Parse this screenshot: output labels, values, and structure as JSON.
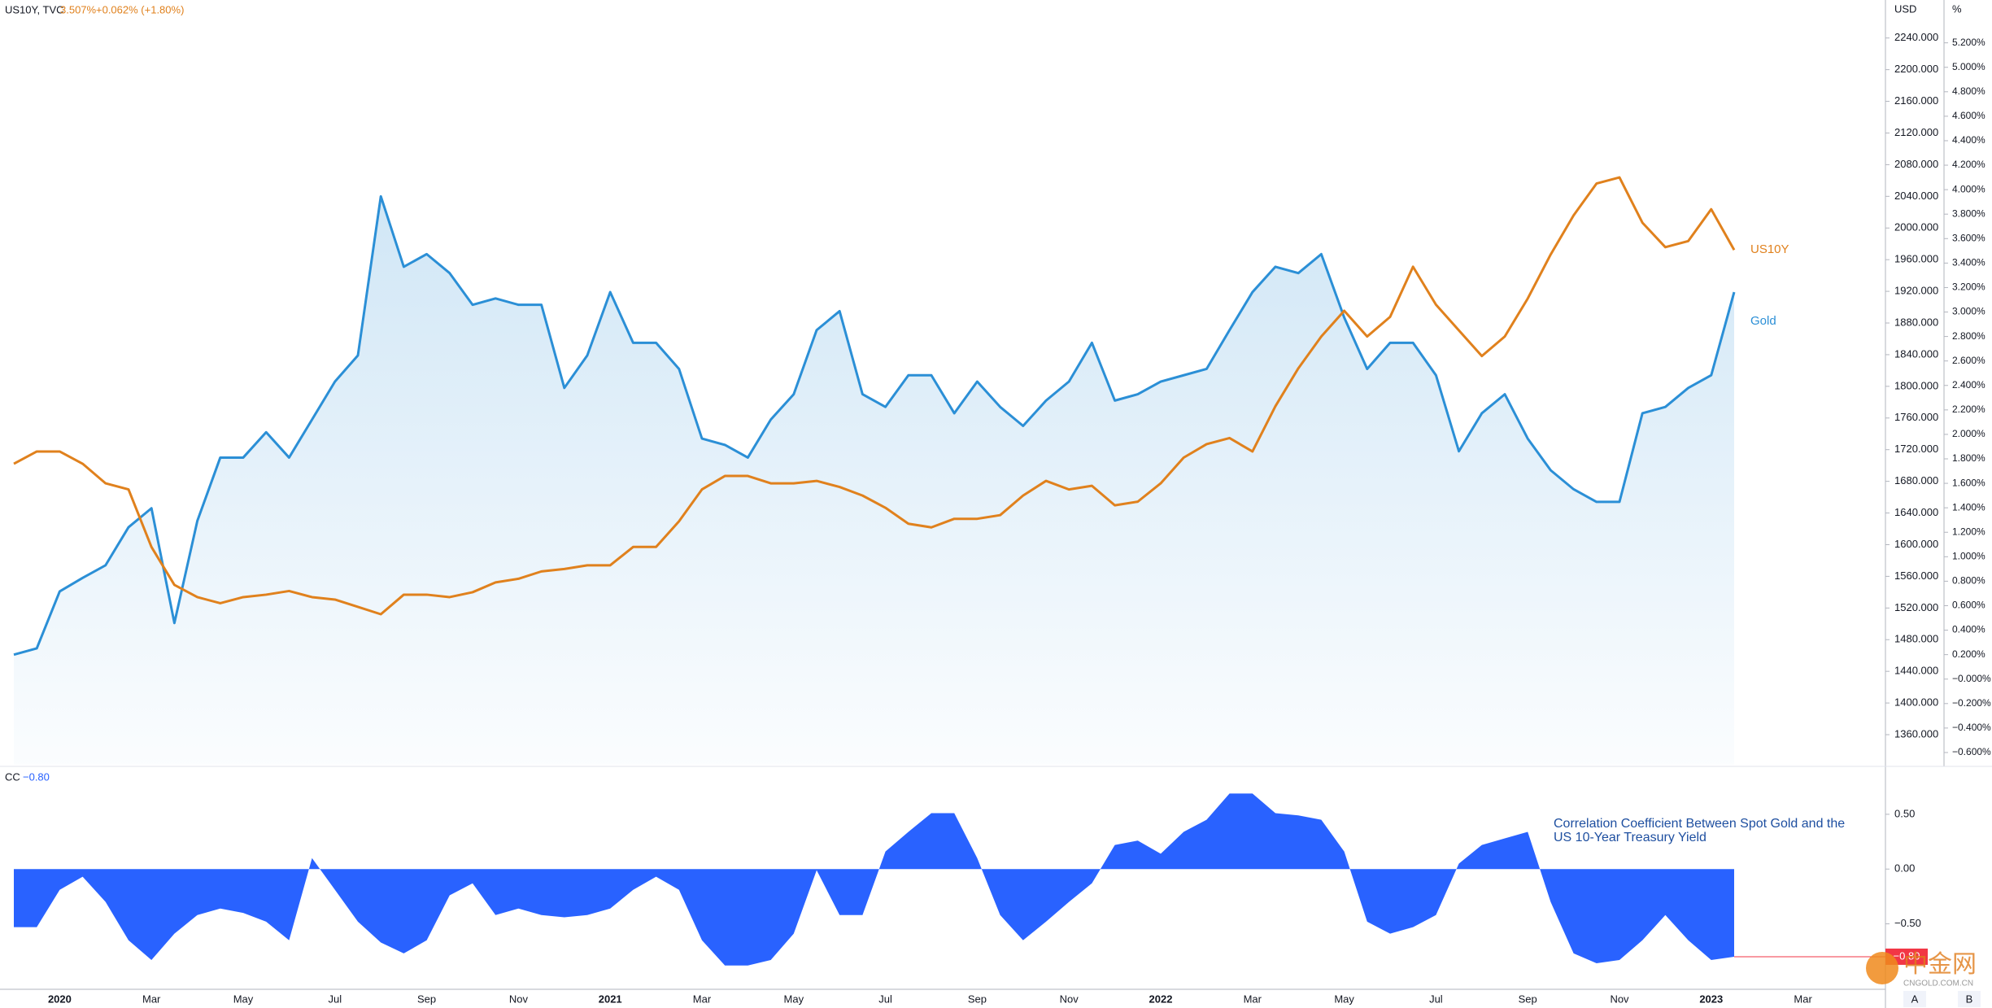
{
  "chart_data": [
    {
      "type": "line",
      "title": "US10Y, TVC",
      "last_value_label": "3.507%",
      "change_label": "+0.062% (+1.80%)",
      "y_unit": "USD",
      "y2_unit": "%",
      "series": [
        {
          "name": "Gold",
          "color": "#2b8fd6",
          "axis": "y",
          "area": true,
          "values": [
            1461,
            1469,
            1541,
            1558,
            1574,
            1622,
            1646,
            1501,
            1630,
            1710,
            1710,
            1742,
            1710,
            1758,
            1806,
            1839,
            2040,
            1951,
            1967,
            1943,
            1903,
            1911,
            1903,
            1903,
            1798,
            1839,
            1919,
            1855,
            1855,
            1822,
            1734,
            1726,
            1710,
            1758,
            1790,
            1871,
            1895,
            1790,
            1774,
            1814,
            1814,
            1766,
            1806,
            1774,
            1750,
            1782,
            1806,
            1855,
            1782,
            1790,
            1806,
            1814,
            1822,
            1871,
            1919,
            1951,
            1943,
            1967,
            1887,
            1822,
            1855,
            1855,
            1814,
            1718,
            1766,
            1790,
            1734,
            1694,
            1670,
            1654,
            1654,
            1766,
            1774,
            1798,
            1814,
            1919,
            null,
            null,
            null,
            null,
            null
          ]
        },
        {
          "name": "US10Y",
          "color": "#e0811d",
          "axis": "y2",
          "values": [
            1.76,
            1.86,
            1.86,
            1.76,
            1.6,
            1.55,
            1.08,
            0.77,
            0.67,
            0.62,
            0.67,
            0.69,
            0.72,
            0.67,
            0.65,
            0.59,
            0.53,
            0.69,
            0.69,
            0.67,
            0.71,
            0.79,
            0.82,
            0.88,
            0.9,
            0.93,
            0.93,
            1.08,
            1.08,
            1.29,
            1.55,
            1.66,
            1.66,
            1.6,
            1.6,
            1.62,
            1.57,
            1.5,
            1.4,
            1.27,
            1.24,
            1.31,
            1.31,
            1.34,
            1.5,
            1.62,
            1.55,
            1.58,
            1.42,
            1.45,
            1.6,
            1.81,
            1.92,
            1.97,
            1.86,
            2.23,
            2.54,
            2.8,
            3.01,
            2.8,
            2.96,
            3.37,
            3.06,
            2.85,
            2.64,
            2.8,
            3.11,
            3.47,
            3.79,
            4.05,
            4.1,
            3.73,
            3.53,
            3.58,
            3.84,
            3.507,
            null,
            null,
            null,
            null,
            null
          ]
        }
      ],
      "ylim": [
        1322,
        2288
      ],
      "yticks": [
        {
          "value": 1360,
          "label": "1360.000"
        },
        {
          "value": 1400,
          "label": "1400.000"
        },
        {
          "value": 1440,
          "label": "1440.000"
        },
        {
          "value": 1480,
          "label": "1480.000"
        },
        {
          "value": 1520,
          "label": "1520.000"
        },
        {
          "value": 1560,
          "label": "1560.000"
        },
        {
          "value": 1600,
          "label": "1600.000"
        },
        {
          "value": 1640,
          "label": "1640.000"
        },
        {
          "value": 1680,
          "label": "1680.000"
        },
        {
          "value": 1720,
          "label": "1720.000"
        },
        {
          "value": 1760,
          "label": "1760.000"
        },
        {
          "value": 1800,
          "label": "1800.000"
        },
        {
          "value": 1840,
          "label": "1840.000"
        },
        {
          "value": 1880,
          "label": "1880.000"
        },
        {
          "value": 1920,
          "label": "1920.000"
        },
        {
          "value": 1960,
          "label": "1960.000"
        },
        {
          "value": 2000,
          "label": "2000.000"
        },
        {
          "value": 2040,
          "label": "2040.000"
        },
        {
          "value": 2080,
          "label": "2080.000"
        },
        {
          "value": 2120,
          "label": "2120.000"
        },
        {
          "value": 2160,
          "label": "2160.000"
        },
        {
          "value": 2200,
          "label": "2200.000"
        },
        {
          "value": 2240,
          "label": "2240.000"
        }
      ],
      "y2lim": [
        -0.7,
        5.55
      ],
      "y2ticks": [
        {
          "value": -0.6,
          "label": "−0.600%"
        },
        {
          "value": -0.4,
          "label": "−0.400%"
        },
        {
          "value": -0.2,
          "label": "−0.200%"
        },
        {
          "value": 0,
          "label": "−0.000%"
        },
        {
          "value": 0.2,
          "label": "0.200%"
        },
        {
          "value": 0.4,
          "label": "0.400%"
        },
        {
          "value": 0.6,
          "label": "0.600%"
        },
        {
          "value": 0.8,
          "label": "0.800%"
        },
        {
          "value": 1.0,
          "label": "1.000%"
        },
        {
          "value": 1.2,
          "label": "1.200%"
        },
        {
          "value": 1.4,
          "label": "1.400%"
        },
        {
          "value": 1.6,
          "label": "1.600%"
        },
        {
          "value": 1.8,
          "label": "1.800%"
        },
        {
          "value": 2.0,
          "label": "2.000%"
        },
        {
          "value": 2.2,
          "label": "2.200%"
        },
        {
          "value": 2.4,
          "label": "2.400%"
        },
        {
          "value": 2.6,
          "label": "2.600%"
        },
        {
          "value": 2.8,
          "label": "2.800%"
        },
        {
          "value": 3.0,
          "label": "3.000%"
        },
        {
          "value": 3.2,
          "label": "3.200%"
        },
        {
          "value": 3.4,
          "label": "3.400%"
        },
        {
          "value": 3.6,
          "label": "3.600%"
        },
        {
          "value": 3.8,
          "label": "3.800%"
        },
        {
          "value": 4.0,
          "label": "4.000%"
        },
        {
          "value": 4.2,
          "label": "4.200%"
        },
        {
          "value": 4.4,
          "label": "4.400%"
        },
        {
          "value": 4.6,
          "label": "4.600%"
        },
        {
          "value": 4.8,
          "label": "4.800%"
        },
        {
          "value": 5.0,
          "label": "5.000%"
        },
        {
          "value": 5.2,
          "label": "5.200%"
        }
      ]
    },
    {
      "type": "area",
      "title": "CC",
      "last_value_label": "−0.80",
      "color": "#2962ff",
      "annotation": "Correlation Coefficient Between Spot Gold and the US 10-Year Treasury Yield",
      "categories": [
        null,
        null,
        "2020",
        null,
        null,
        null,
        "Mar",
        null,
        null,
        null,
        "May",
        null,
        null,
        null,
        "Jul",
        null,
        null,
        null,
        "Sep",
        null,
        null,
        null,
        "Nov",
        null,
        null,
        null,
        "2021",
        null,
        null,
        null,
        "Mar",
        null,
        null,
        null,
        "May",
        null,
        null,
        null,
        "Jul",
        null,
        null,
        null,
        "Sep",
        null,
        null,
        null,
        "Nov",
        null,
        null,
        null,
        "2022",
        null,
        null,
        null,
        "Mar",
        null,
        null,
        null,
        "May",
        null,
        null,
        null,
        "Jul",
        null,
        null,
        null,
        "Sep",
        null,
        null,
        null,
        "Nov",
        null,
        null,
        null,
        "2023",
        null,
        null,
        null,
        "Mar",
        null,
        null
      ],
      "values": [
        -0.53,
        -0.53,
        -0.19,
        -0.07,
        -0.3,
        -0.65,
        -0.83,
        -0.59,
        -0.42,
        -0.36,
        -0.4,
        -0.48,
        -0.65,
        0.1,
        -0.19,
        -0.48,
        -0.67,
        -0.77,
        -0.65,
        -0.24,
        -0.13,
        -0.42,
        -0.36,
        -0.42,
        -0.44,
        -0.42,
        -0.36,
        -0.19,
        -0.07,
        -0.19,
        -0.65,
        -0.88,
        -0.88,
        -0.83,
        -0.59,
        -0.01,
        -0.42,
        -0.42,
        0.16,
        0.34,
        0.51,
        0.51,
        0.1,
        -0.42,
        -0.65,
        -0.48,
        -0.3,
        -0.13,
        0.22,
        0.26,
        0.14,
        0.34,
        0.45,
        0.69,
        0.69,
        0.51,
        0.49,
        0.45,
        0.16,
        -0.48,
        -0.59,
        -0.53,
        -0.42,
        0.05,
        0.22,
        0.28,
        0.34,
        -0.3,
        -0.77,
        -0.86,
        -0.83,
        -0.65,
        -0.42,
        -0.65,
        -0.83,
        -0.8,
        null,
        null,
        null,
        null,
        null
      ],
      "ylim": [
        -1.09,
        0.93
      ],
      "yticks": [
        {
          "value": -0.5,
          "label": "−0.50"
        },
        {
          "value": 0,
          "label": "0.00"
        },
        {
          "value": 0.5,
          "label": "0.50"
        }
      ]
    }
  ],
  "scale_buttons": [
    "A",
    "B"
  ],
  "watermark": [
    "中金网",
    "CNGOLD.COM.CN"
  ]
}
